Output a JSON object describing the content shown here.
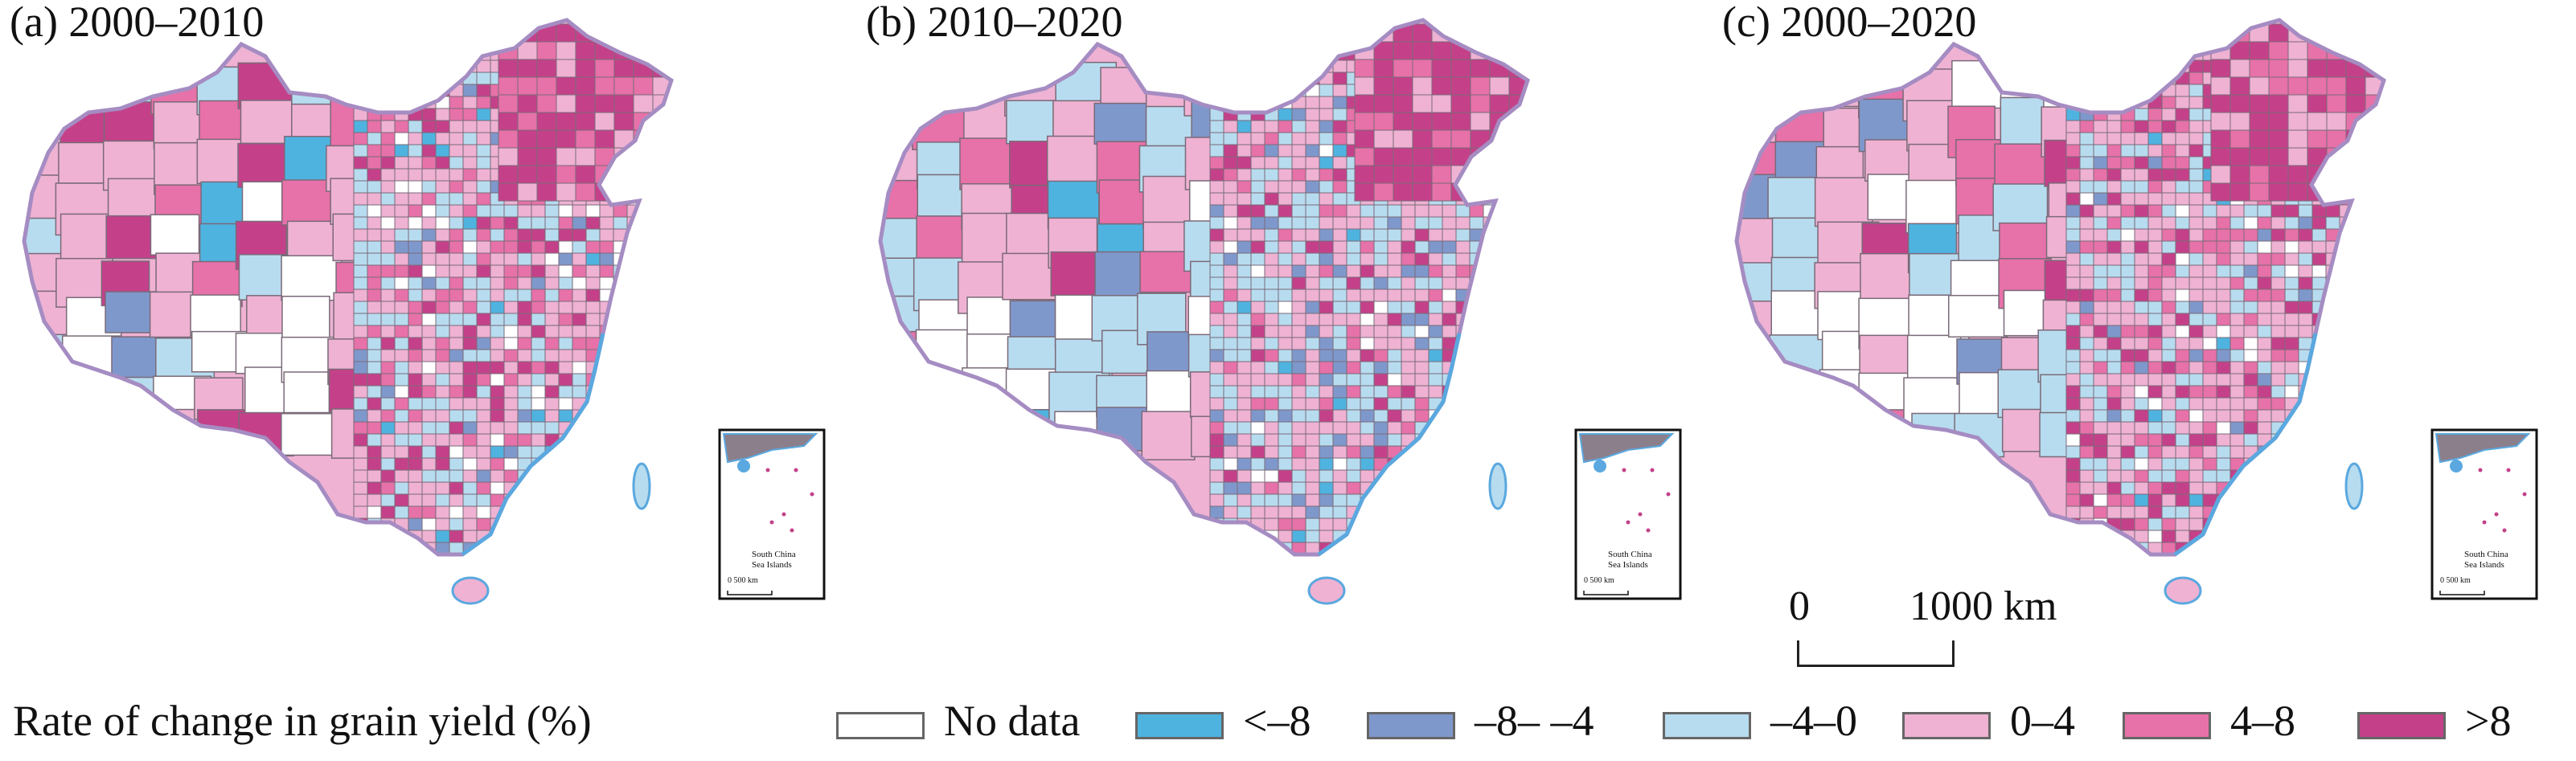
{
  "panels": [
    {
      "title": "(a) 2000–2010",
      "inset": {
        "label_line1": "South China",
        "label_line2": "Sea Islands",
        "scale": "0 500 km"
      }
    },
    {
      "title": "(b) 2010–2020",
      "inset": {
        "label_line1": "South China",
        "label_line2": "Sea Islands",
        "scale": "0 500 km"
      }
    },
    {
      "title": "(c) 2000–2020",
      "inset": {
        "label_line1": "South China",
        "label_line2": "Sea Islands",
        "scale": "0 500 km"
      }
    }
  ],
  "scale_bar": {
    "start": "0",
    "end": "1000 km"
  },
  "legend": {
    "title": "Rate of change in grain yield (%)",
    "items": [
      {
        "label": "No data",
        "color": "#ffffff"
      },
      {
        "label": "<–8",
        "color": "#4fb3e0"
      },
      {
        "label": "–8– –4",
        "color": "#7f98cc"
      },
      {
        "label": "–4–0",
        "color": "#b7dcef"
      },
      {
        "label": "0–4",
        "color": "#efb2d3"
      },
      {
        "label": "4–8",
        "color": "#e771a9"
      },
      {
        "label": ">8",
        "color": "#c4418a"
      }
    ]
  },
  "colors": {
    "coast": "#5aa8df",
    "border": "#7a6a78",
    "outline": "#a58cc2"
  }
}
